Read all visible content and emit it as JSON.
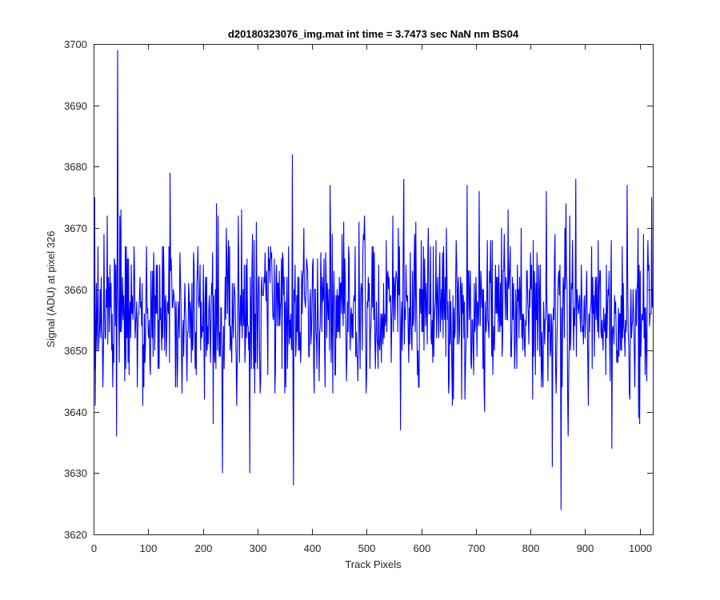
{
  "chart_data": {
    "type": "line",
    "title": "d20180323076_img.mat int time = 3.7473 sec  NaN nm BS04",
    "xlabel": "Track Pixels",
    "ylabel": "Signal (ADU) at pixel 326",
    "xlim": [
      0,
      1024
    ],
    "ylim": [
      3620,
      3700
    ],
    "xticks": [
      0,
      100,
      200,
      300,
      400,
      500,
      600,
      700,
      800,
      900,
      1000
    ],
    "yticks": [
      3620,
      3630,
      3640,
      3650,
      3660,
      3670,
      3680,
      3690,
      3700
    ],
    "grid": false,
    "legend": "none",
    "series": [
      {
        "color": "#0000ff",
        "noise": {
          "x_start": 1,
          "x_end": 1024,
          "mean": 3656,
          "std": 7,
          "min": 3636,
          "max": 3678,
          "seed": 326
        },
        "anchors": [
          [
            1,
            3647
          ],
          [
            2,
            3675
          ],
          [
            4,
            3652
          ],
          [
            8,
            3667
          ],
          [
            12,
            3660
          ],
          [
            42,
            3636
          ],
          [
            44,
            3699
          ],
          [
            45,
            3660
          ],
          [
            48,
            3672
          ],
          [
            140,
            3679
          ],
          [
            219,
            3638
          ],
          [
            225,
            3674
          ],
          [
            236,
            3630
          ],
          [
            286,
            3630
          ],
          [
            364,
            3682
          ],
          [
            366,
            3628
          ],
          [
            433,
            3677
          ],
          [
            684,
            3677
          ],
          [
            706,
            3676
          ],
          [
            840,
            3631
          ],
          [
            856,
            3624
          ],
          [
            949,
            3634
          ],
          [
            977,
            3677
          ],
          [
            1000,
            3638
          ],
          [
            1022,
            3675
          ],
          [
            1024,
            3660
          ]
        ]
      }
    ]
  }
}
